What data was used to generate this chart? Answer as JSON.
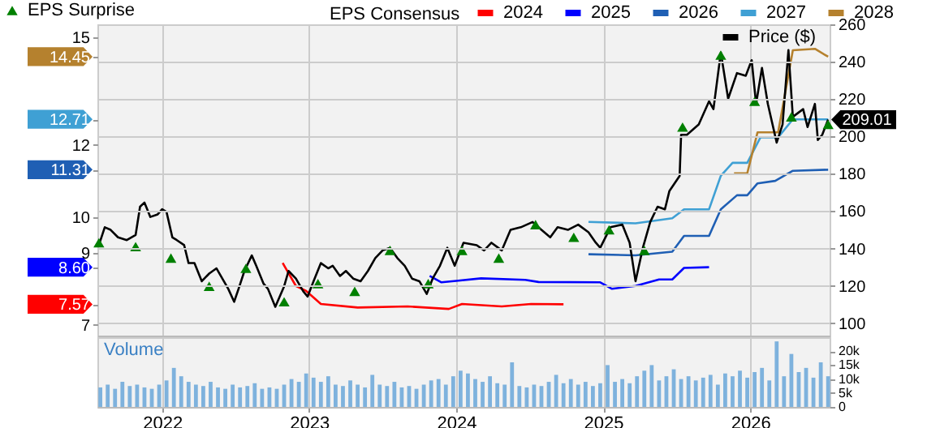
{
  "chart_data": [
    {
      "type": "line",
      "legend_title": "EPS Consensus",
      "legend": "top",
      "grid": true,
      "tick_labels": "y",
      "xlim": [
        2021.56,
        2026.54
      ],
      "xticks": [
        2022,
        2023,
        2024,
        2025,
        2026
      ],
      "ylim": [
        6.7,
        15.35
      ],
      "yticks": [
        7,
        7.57,
        {
          "value": 8.6,
          "label": "8.60"
        },
        9,
        10,
        11.31,
        12,
        12.71,
        14.45,
        15
      ],
      "y2lim": [
        93.4,
        260
      ],
      "y2ticks": [
        100,
        120,
        140,
        160,
        180,
        200,
        220,
        240,
        260
      ],
      "series": [
        {
          "name": "2024",
          "color": "#ff0000",
          "x": [
            2022.82,
            2022.91,
            2022.98,
            2023.08,
            2023.33,
            2023.67,
            2023.95,
            2024.04,
            2024.31,
            2024.51,
            2024.73
          ],
          "values": [
            8.72,
            8.08,
            7.94,
            7.58,
            7.48,
            7.51,
            7.44,
            7.58,
            7.51,
            7.58,
            7.57
          ]
        },
        {
          "name": "2025",
          "color": "#0000ff",
          "x": [
            2023.82,
            2023.9,
            2024.0,
            2024.17,
            2024.47,
            2024.56,
            2024.98,
            2025.06,
            2025.22,
            2025.38,
            2025.47,
            2025.55,
            2025.72
          ],
          "values": [
            8.36,
            8.18,
            8.22,
            8.29,
            8.25,
            8.19,
            8.18,
            8.0,
            8.08,
            8.26,
            8.26,
            8.58,
            8.6
          ]
        },
        {
          "name": "2026",
          "color": "#1f5fb4",
          "x": [
            2024.9,
            2025.22,
            2025.47,
            2025.55,
            2025.72,
            2025.8,
            2025.91,
            2025.98,
            2026.05,
            2026.17,
            2026.29,
            2026.53
          ],
          "values": [
            8.96,
            8.93,
            9.03,
            9.47,
            9.47,
            10.21,
            10.6,
            10.6,
            10.93,
            11.0,
            11.28,
            11.31
          ]
        },
        {
          "name": "2027",
          "color": "#3fa0d4",
          "x": [
            2024.9,
            2025.22,
            2025.47,
            2025.55,
            2025.72,
            2025.8,
            2025.88,
            2025.98,
            2026.07,
            2026.19,
            2026.29,
            2026.53
          ],
          "values": [
            9.86,
            9.82,
            9.96,
            10.21,
            10.21,
            11.14,
            11.5,
            11.5,
            12.21,
            12.21,
            12.71,
            12.71
          ]
        },
        {
          "name": "2028",
          "color": "#b5812e",
          "x": [
            2025.89,
            2025.98,
            2026.05,
            2026.19,
            2026.29,
            2026.44,
            2026.53
          ],
          "values": [
            11.21,
            11.21,
            12.35,
            12.35,
            14.63,
            14.67,
            14.45
          ]
        },
        {
          "name": "Price ($)",
          "color": "#000000",
          "axis": "y2",
          "x": [
            2021.57,
            2021.61,
            2021.65,
            2021.7,
            2021.76,
            2021.82,
            2021.85,
            2021.88,
            2021.92,
            2021.97,
            2022.0,
            2022.03,
            2022.07,
            2022.1,
            2022.15,
            2022.18,
            2022.22,
            2022.27,
            2022.32,
            2022.37,
            2022.42,
            2022.45,
            2022.49,
            2022.52,
            2022.56,
            2022.61,
            2022.64,
            2022.69,
            2022.72,
            2022.77,
            2022.83,
            2022.86,
            2022.91,
            2022.96,
            2022.99,
            2023.03,
            2023.08,
            2023.13,
            2023.16,
            2023.21,
            2023.25,
            2023.3,
            2023.35,
            2023.4,
            2023.45,
            2023.5,
            2023.55,
            2023.6,
            2023.65,
            2023.7,
            2023.75,
            2023.8,
            2023.84,
            2023.89,
            2023.94,
            2023.99,
            2024.05,
            2024.14,
            2024.19,
            2024.24,
            2024.31,
            2024.37,
            2024.44,
            2024.52,
            2024.58,
            2024.64,
            2024.69,
            2024.76,
            2024.83,
            2024.9,
            2024.95,
            2024.98,
            2025.05,
            2025.13,
            2025.18,
            2025.22,
            2025.27,
            2025.32,
            2025.37,
            2025.42,
            2025.45,
            2025.52,
            2025.53,
            2025.57,
            2025.65,
            2025.72,
            2025.75,
            2025.8,
            2025.85,
            2025.91,
            2025.97,
            2026.01,
            2026.04,
            2026.08,
            2026.12,
            2026.18,
            2026.22,
            2026.26,
            2026.29,
            2026.36,
            2026.39,
            2026.44,
            2026.46,
            2026.49,
            2026.53
          ],
          "values": [
            141.8,
            151.4,
            150,
            146,
            144.5,
            147.3,
            162.4,
            164.6,
            156.9,
            158.3,
            161,
            159.6,
            145.9,
            144.5,
            141.8,
            132.2,
            132.2,
            122.5,
            126.6,
            129.4,
            122.5,
            118.4,
            111.5,
            118.4,
            128,
            136.3,
            130.8,
            121.2,
            118.4,
            108.8,
            119.8,
            128,
            123.9,
            117.1,
            114.3,
            122.5,
            132.2,
            129.4,
            130.8,
            125.3,
            128,
            123.9,
            122.5,
            128,
            134.9,
            139,
            140.4,
            134.9,
            130.8,
            123.9,
            122.5,
            115.7,
            123.9,
            130.8,
            140.4,
            130.8,
            143.1,
            141.8,
            139,
            143.1,
            139,
            150,
            151.4,
            154.2,
            150,
            146,
            151.4,
            150,
            152.8,
            148.7,
            143.1,
            140.4,
            151.4,
            152.8,
            143.1,
            122.5,
            140.4,
            154.2,
            162.4,
            161,
            170.7,
            178.9,
            200.9,
            200.9,
            206.4,
            218.8,
            214.6,
            244.9,
            220.2,
            233.9,
            232.5,
            240.8,
            217.4,
            236.7,
            217.4,
            196.7,
            206.4,
            246.2,
            210.5,
            214.6,
            205,
            217.4,
            198.1,
            200.9,
            209.01
          ],
          "value_labels": [
            null,
            null,
            null,
            null,
            null,
            null,
            null,
            null,
            null,
            null,
            null,
            null,
            null,
            null,
            null,
            null,
            null,
            null,
            null,
            null,
            null,
            null,
            null,
            null,
            null,
            null,
            null,
            null,
            null,
            null,
            null,
            null,
            null,
            null,
            null,
            null,
            null,
            null,
            null,
            null,
            null,
            null,
            null,
            null,
            null,
            null,
            null,
            null,
            null,
            null,
            null,
            null,
            null,
            null,
            null,
            null,
            null,
            null,
            null,
            null,
            null,
            null,
            null,
            null,
            null,
            null,
            null,
            null,
            null,
            null,
            null,
            null,
            null,
            null,
            null,
            null,
            null,
            null,
            null,
            null,
            null,
            null,
            null,
            null,
            null,
            null,
            null,
            null,
            null,
            null,
            null,
            null,
            null,
            null,
            null,
            null,
            null,
            null,
            null,
            null,
            null,
            null,
            null,
            null,
            "209.01"
          ]
        },
        {
          "name": "EPS Surprise",
          "type": "scatter",
          "marker": "triangle",
          "color": "#008000",
          "axis": "y2",
          "x": [
            2021.57,
            2021.82,
            2022.06,
            2022.32,
            2022.57,
            2022.83,
            2023.06,
            2023.31,
            2023.55,
            2023.81,
            2024.04,
            2024.29,
            2024.54,
            2024.8,
            2025.04,
            2025.28,
            2025.54,
            2025.8,
            2026.03,
            2026.28,
            2026.53
          ],
          "values": [
            143.1,
            141,
            134.9,
            119.8,
            129.4,
            111.5,
            121.2,
            117.1,
            139,
            121.2,
            139,
            134.9,
            152.8,
            146,
            150,
            139,
            205,
            243.5,
            218.8,
            210.5,
            206.4
          ]
        }
      ]
    },
    {
      "type": "bar",
      "title": "Volume",
      "grid": "x",
      "xlim": [
        2021.56,
        2026.54
      ],
      "xticks": [
        2022,
        2023,
        2024,
        2025,
        2026
      ],
      "y2lim": [
        0,
        25000
      ],
      "y2ticks": [
        0,
        {
          "value": 5000,
          "label": "5k"
        },
        {
          "value": 10000,
          "label": "10k"
        },
        {
          "value": 15000,
          "label": "15k"
        },
        {
          "value": 20000,
          "label": "20k"
        }
      ],
      "series": [
        {
          "color": "#7eb2dd",
          "axis": "y2",
          "x": [
            2021.58,
            2021.63,
            2021.68,
            2021.73,
            2021.78,
            2021.83,
            2021.88,
            2021.93,
            2021.98,
            2022.03,
            2022.08,
            2022.13,
            2022.18,
            2022.23,
            2022.28,
            2022.33,
            2022.38,
            2022.43,
            2022.48,
            2022.53,
            2022.58,
            2022.63,
            2022.68,
            2022.73,
            2022.78,
            2022.83,
            2022.88,
            2022.93,
            2022.98,
            2023.03,
            2023.08,
            2023.13,
            2023.18,
            2023.23,
            2023.28,
            2023.33,
            2023.38,
            2023.43,
            2023.48,
            2023.53,
            2023.58,
            2023.63,
            2023.68,
            2023.73,
            2023.78,
            2023.83,
            2023.88,
            2023.93,
            2023.98,
            2024.03,
            2024.08,
            2024.13,
            2024.18,
            2024.23,
            2024.28,
            2024.33,
            2024.38,
            2024.43,
            2024.48,
            2024.53,
            2024.58,
            2024.63,
            2024.68,
            2024.73,
            2024.78,
            2024.83,
            2024.88,
            2024.93,
            2024.98,
            2025.03,
            2025.08,
            2025.13,
            2025.18,
            2025.23,
            2025.28,
            2025.33,
            2025.38,
            2025.43,
            2025.48,
            2025.53,
            2025.58,
            2025.63,
            2025.68,
            2025.73,
            2025.78,
            2025.83,
            2025.88,
            2025.93,
            2025.98,
            2026.03,
            2026.08,
            2026.13,
            2026.18,
            2026.23,
            2026.28,
            2026.33,
            2026.38,
            2026.43,
            2026.48,
            2026.53
          ],
          "values": [
            7000,
            8000,
            6500,
            9000,
            7500,
            8000,
            7000,
            6500,
            8000,
            9500,
            14000,
            11000,
            9000,
            8000,
            7500,
            9000,
            7000,
            6500,
            8000,
            7000,
            7500,
            8500,
            6500,
            7000,
            6500,
            8000,
            10000,
            9000,
            12000,
            10500,
            9000,
            11000,
            8000,
            7500,
            9500,
            8000,
            7000,
            11500,
            8000,
            7500,
            9000,
            7000,
            7500,
            6500,
            8000,
            9500,
            10000,
            8000,
            11000,
            13000,
            12000,
            10000,
            9000,
            11000,
            8500,
            8000,
            16000,
            7500,
            7000,
            8000,
            7500,
            9000,
            11500,
            8500,
            10000,
            8000,
            9000,
            7500,
            8500,
            15000,
            9000,
            10000,
            8500,
            11000,
            13000,
            15000,
            9500,
            11000,
            13500,
            10000,
            11000,
            9500,
            10500,
            11500,
            8000,
            12000,
            11000,
            13000,
            10500,
            12500,
            14000,
            9500,
            23500,
            11000,
            19000,
            12500,
            14000,
            10500,
            16000,
            11000
          ]
        }
      ]
    }
  ]
}
